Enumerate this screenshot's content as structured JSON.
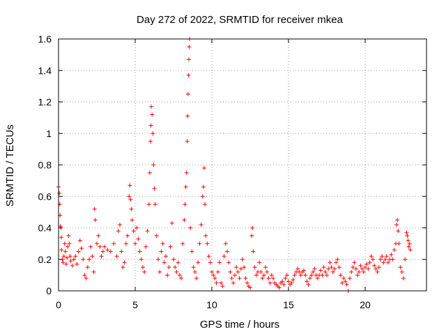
{
  "chart_data": {
    "type": "scatter",
    "title": "Day 272 of 2022, SRMTID for receiver mkea",
    "xlabel": "GPS time / hours",
    "ylabel": "SRMTID / TECUs",
    "xlim": [
      0,
      24
    ],
    "ylim": [
      0,
      1.6
    ],
    "xticks": [
      0,
      5,
      10,
      15,
      20
    ],
    "xtick_labels": [
      "0",
      "5",
      "10",
      "15",
      "20"
    ],
    "yticks": [
      0,
      0.2,
      0.4,
      0.6,
      0.8,
      1.0,
      1.2,
      1.4,
      1.6
    ],
    "ytick_labels": [
      "0",
      "0.2",
      "0.4",
      "0.6",
      "0.8",
      "1",
      "1.2",
      "1.4",
      "1.6"
    ],
    "grid": true,
    "marker": "plus",
    "color": "#ff0000",
    "series": [
      {
        "name": "mkea",
        "points": [
          [
            0.0,
            0.66
          ],
          [
            0.05,
            0.62
          ],
          [
            0.08,
            0.55
          ],
          [
            0.1,
            0.48
          ],
          [
            0.12,
            0.41
          ],
          [
            0.15,
            0.4
          ],
          [
            0.18,
            0.34
          ],
          [
            0.2,
            0.26
          ],
          [
            0.25,
            0.2
          ],
          [
            0.3,
            0.18
          ],
          [
            0.35,
            0.22
          ],
          [
            0.4,
            0.3
          ],
          [
            0.45,
            0.25
          ],
          [
            0.5,
            0.17
          ],
          [
            0.55,
            0.21
          ],
          [
            0.6,
            0.28
          ],
          [
            0.65,
            0.35
          ],
          [
            0.7,
            0.3
          ],
          [
            0.75,
            0.22
          ],
          [
            0.8,
            0.19
          ],
          [
            0.9,
            0.16
          ],
          [
            1.0,
            0.2
          ],
          [
            1.1,
            0.22
          ],
          [
            1.2,
            0.17
          ],
          [
            1.3,
            0.25
          ],
          [
            1.4,
            0.32
          ],
          [
            1.5,
            0.27
          ],
          [
            1.6,
            0.2
          ],
          [
            1.7,
            0.1
          ],
          [
            1.8,
            0.08
          ],
          [
            1.9,
            0.15
          ],
          [
            2.0,
            0.2
          ],
          [
            2.1,
            0.28
          ],
          [
            2.2,
            0.22
          ],
          [
            2.3,
            0.12
          ],
          [
            2.35,
            0.52
          ],
          [
            2.4,
            0.45
          ],
          [
            2.5,
            0.3
          ],
          [
            2.6,
            0.35
          ],
          [
            2.7,
            0.28
          ],
          [
            2.8,
            0.22
          ],
          [
            2.9,
            0.25
          ],
          [
            3.0,
            0.28
          ],
          [
            3.2,
            0.26
          ],
          [
            3.4,
            0.25
          ],
          [
            3.6,
            0.3
          ],
          [
            3.8,
            0.22
          ],
          [
            3.9,
            0.38
          ],
          [
            4.0,
            0.42
          ],
          [
            4.1,
            0.25
          ],
          [
            4.2,
            0.15
          ],
          [
            4.3,
            0.18
          ],
          [
            4.4,
            0.3
          ],
          [
            4.5,
            0.35
          ],
          [
            4.6,
            0.6
          ],
          [
            4.65,
            0.67
          ],
          [
            4.7,
            0.58
          ],
          [
            4.75,
            0.52
          ],
          [
            4.8,
            0.45
          ],
          [
            4.9,
            0.38
          ],
          [
            5.0,
            0.3
          ],
          [
            5.1,
            0.4
          ],
          [
            5.2,
            0.33
          ],
          [
            5.3,
            0.25
          ],
          [
            5.4,
            0.2
          ],
          [
            5.5,
            0.15
          ],
          [
            5.6,
            0.12
          ],
          [
            5.7,
            0.28
          ],
          [
            5.8,
            0.38
          ],
          [
            5.9,
            0.55
          ],
          [
            5.95,
            0.75
          ],
          [
            6.0,
            0.95
          ],
          [
            6.02,
            1.05
          ],
          [
            6.05,
            1.17
          ],
          [
            6.1,
            1.12
          ],
          [
            6.15,
            1.0
          ],
          [
            6.2,
            0.8
          ],
          [
            6.25,
            0.65
          ],
          [
            6.3,
            0.55
          ],
          [
            6.4,
            0.35
          ],
          [
            6.5,
            0.2
          ],
          [
            6.6,
            0.12
          ],
          [
            6.7,
            0.25
          ],
          [
            6.8,
            0.3
          ],
          [
            6.9,
            0.18
          ],
          [
            7.0,
            0.22
          ],
          [
            7.1,
            0.1
          ],
          [
            7.2,
            0.15
          ],
          [
            7.3,
            0.28
          ],
          [
            7.4,
            0.43
          ],
          [
            7.5,
            0.2
          ],
          [
            7.6,
            0.15
          ],
          [
            7.7,
            0.12
          ],
          [
            7.8,
            0.18
          ],
          [
            7.9,
            0.1
          ],
          [
            8.0,
            0.08
          ],
          [
            8.1,
            0.3
          ],
          [
            8.2,
            0.45
          ],
          [
            8.25,
            0.55
          ],
          [
            8.3,
            0.66
          ],
          [
            8.35,
            0.75
          ],
          [
            8.4,
            0.95
          ],
          [
            8.42,
            1.11
          ],
          [
            8.45,
            1.25
          ],
          [
            8.48,
            1.37
          ],
          [
            8.5,
            1.47
          ],
          [
            8.52,
            1.55
          ],
          [
            8.55,
            1.6
          ],
          [
            8.6,
            0.4
          ],
          [
            8.7,
            0.25
          ],
          [
            8.8,
            0.15
          ],
          [
            8.9,
            0.12
          ],
          [
            9.0,
            0.08
          ],
          [
            9.1,
            0.18
          ],
          [
            9.2,
            0.3
          ],
          [
            9.3,
            0.42
          ],
          [
            9.4,
            0.6
          ],
          [
            9.45,
            0.66
          ],
          [
            9.5,
            0.78
          ],
          [
            9.55,
            0.55
          ],
          [
            9.6,
            0.35
          ],
          [
            9.7,
            0.3
          ],
          [
            9.8,
            0.22
          ],
          [
            9.9,
            0.18
          ],
          [
            10.0,
            0.12
          ],
          [
            10.1,
            0.1
          ],
          [
            10.2,
            0.08
          ],
          [
            10.3,
            0.05
          ],
          [
            10.4,
            0.12
          ],
          [
            10.5,
            0.18
          ],
          [
            10.6,
            0.05
          ],
          [
            10.7,
            0.03
          ],
          [
            10.8,
            0.22
          ],
          [
            10.9,
            0.3
          ],
          [
            11.0,
            0.25
          ],
          [
            11.1,
            0.18
          ],
          [
            11.2,
            0.12
          ],
          [
            11.3,
            0.08
          ],
          [
            11.4,
            0.05
          ],
          [
            11.5,
            0.1
          ],
          [
            11.6,
            0.15
          ],
          [
            11.7,
            0.12
          ],
          [
            11.8,
            0.08
          ],
          [
            11.9,
            0.14
          ],
          [
            12.0,
            0.2
          ],
          [
            12.1,
            0.15
          ],
          [
            12.2,
            0.08
          ],
          [
            12.3,
            0.05
          ],
          [
            12.4,
            0.03
          ],
          [
            12.5,
            0.02
          ],
          [
            12.6,
            0.35
          ],
          [
            12.65,
            0.4
          ],
          [
            12.7,
            0.25
          ],
          [
            12.8,
            0.15
          ],
          [
            12.9,
            0.1
          ],
          [
            13.0,
            0.12
          ],
          [
            13.1,
            0.18
          ],
          [
            13.2,
            0.12
          ],
          [
            13.3,
            0.08
          ],
          [
            13.4,
            0.1
          ],
          [
            13.5,
            0.15
          ],
          [
            13.6,
            0.12
          ],
          [
            13.7,
            0.08
          ],
          [
            13.8,
            0.05
          ],
          [
            13.9,
            0.1
          ],
          [
            14.0,
            0.08
          ],
          [
            14.1,
            0.05
          ],
          [
            14.2,
            0.04
          ],
          [
            14.3,
            0.03
          ],
          [
            14.4,
            0.02
          ],
          [
            14.5,
            0.05
          ],
          [
            14.6,
            0.06
          ],
          [
            14.7,
            0.04
          ],
          [
            14.8,
            0.08
          ],
          [
            14.9,
            0.1
          ],
          [
            15.0,
            0.06
          ],
          [
            15.1,
            0.04
          ],
          [
            15.2,
            0.05
          ],
          [
            15.3,
            0.07
          ],
          [
            15.4,
            0.1
          ],
          [
            15.5,
            0.12
          ],
          [
            15.6,
            0.14
          ],
          [
            15.7,
            0.12
          ],
          [
            15.8,
            0.1
          ],
          [
            15.9,
            0.12
          ],
          [
            16.0,
            0.13
          ],
          [
            16.1,
            0.1
          ],
          [
            16.2,
            0.06
          ],
          [
            16.3,
            0.04
          ],
          [
            16.4,
            0.08
          ],
          [
            16.5,
            0.1
          ],
          [
            16.6,
            0.12
          ],
          [
            16.7,
            0.14
          ],
          [
            16.8,
            0.1
          ],
          [
            16.9,
            0.08
          ],
          [
            17.0,
            0.1
          ],
          [
            17.1,
            0.13
          ],
          [
            17.2,
            0.1
          ],
          [
            17.3,
            0.15
          ],
          [
            17.4,
            0.12
          ],
          [
            17.5,
            0.1
          ],
          [
            17.6,
            0.14
          ],
          [
            17.7,
            0.18
          ],
          [
            17.8,
            0.15
          ],
          [
            17.9,
            0.12
          ],
          [
            18.0,
            0.14
          ],
          [
            18.1,
            0.18
          ],
          [
            18.2,
            0.2
          ],
          [
            18.3,
            0.15
          ],
          [
            18.4,
            0.1
          ],
          [
            18.5,
            0.05
          ],
          [
            18.6,
            0.08
          ],
          [
            18.7,
            0.06
          ],
          [
            18.8,
            0.04
          ],
          [
            18.9,
            0.0
          ],
          [
            19.0,
            0.08
          ],
          [
            19.1,
            0.12
          ],
          [
            19.2,
            0.15
          ],
          [
            19.3,
            0.18
          ],
          [
            19.4,
            0.14
          ],
          [
            19.5,
            0.1
          ],
          [
            19.6,
            0.12
          ],
          [
            19.7,
            0.16
          ],
          [
            19.8,
            0.14
          ],
          [
            19.9,
            0.12
          ],
          [
            20.0,
            0.15
          ],
          [
            20.1,
            0.17
          ],
          [
            20.2,
            0.14
          ],
          [
            20.3,
            0.18
          ],
          [
            20.4,
            0.22
          ],
          [
            20.5,
            0.2
          ],
          [
            20.6,
            0.16
          ],
          [
            20.7,
            0.14
          ],
          [
            20.8,
            0.12
          ],
          [
            20.9,
            0.15
          ],
          [
            21.0,
            0.2
          ],
          [
            21.1,
            0.22
          ],
          [
            21.2,
            0.18
          ],
          [
            21.3,
            0.2
          ],
          [
            21.4,
            0.22
          ],
          [
            21.5,
            0.18
          ],
          [
            21.6,
            0.2
          ],
          [
            21.7,
            0.23
          ],
          [
            21.8,
            0.2
          ],
          [
            21.9,
            0.26
          ],
          [
            22.0,
            0.3
          ],
          [
            22.05,
            0.42
          ],
          [
            22.1,
            0.45
          ],
          [
            22.15,
            0.38
          ],
          [
            22.2,
            0.3
          ],
          [
            22.3,
            0.15
          ],
          [
            22.4,
            0.12
          ],
          [
            22.5,
            0.08
          ],
          [
            22.6,
            0.2
          ],
          [
            22.7,
            0.37
          ],
          [
            22.75,
            0.35
          ],
          [
            22.8,
            0.32
          ],
          [
            22.85,
            0.28
          ],
          [
            22.9,
            0.3
          ],
          [
            22.95,
            0.26
          ]
        ]
      }
    ]
  }
}
